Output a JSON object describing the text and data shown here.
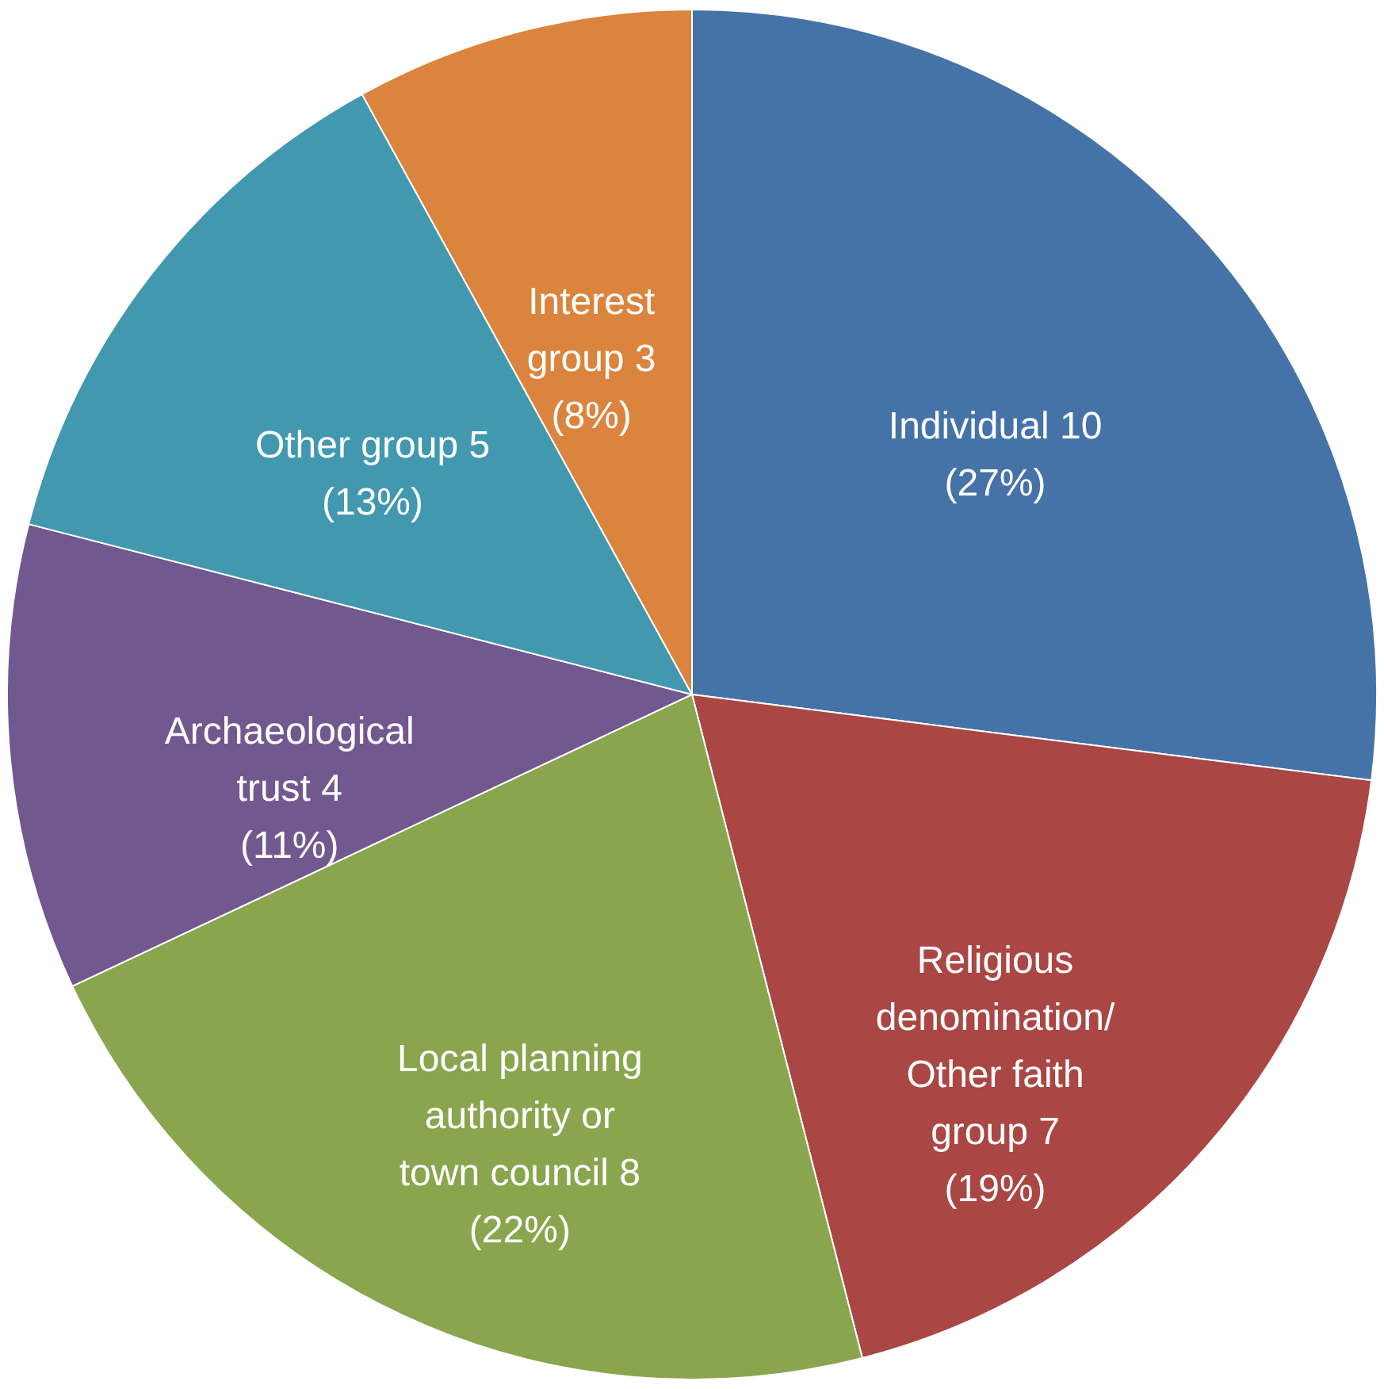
{
  "chart_data": {
    "type": "pie",
    "categories": [
      "Individual 10",
      "Religious denomination/ Other faith group 7",
      "Local planning authority or town council 8",
      "Archaeological trust 4",
      "Other group 5",
      "Interest group 3"
    ],
    "values": [
      27,
      19,
      22,
      11,
      13,
      8
    ],
    "colors": [
      "#4573a7",
      "#aa4644",
      "#89a54e",
      "#71588f",
      "#4198af",
      "#db843d"
    ],
    "value_labels": [
      "(27%)",
      "(19%)",
      "(22%)",
      "(11%)",
      "(13%)",
      "(8%)"
    ]
  }
}
